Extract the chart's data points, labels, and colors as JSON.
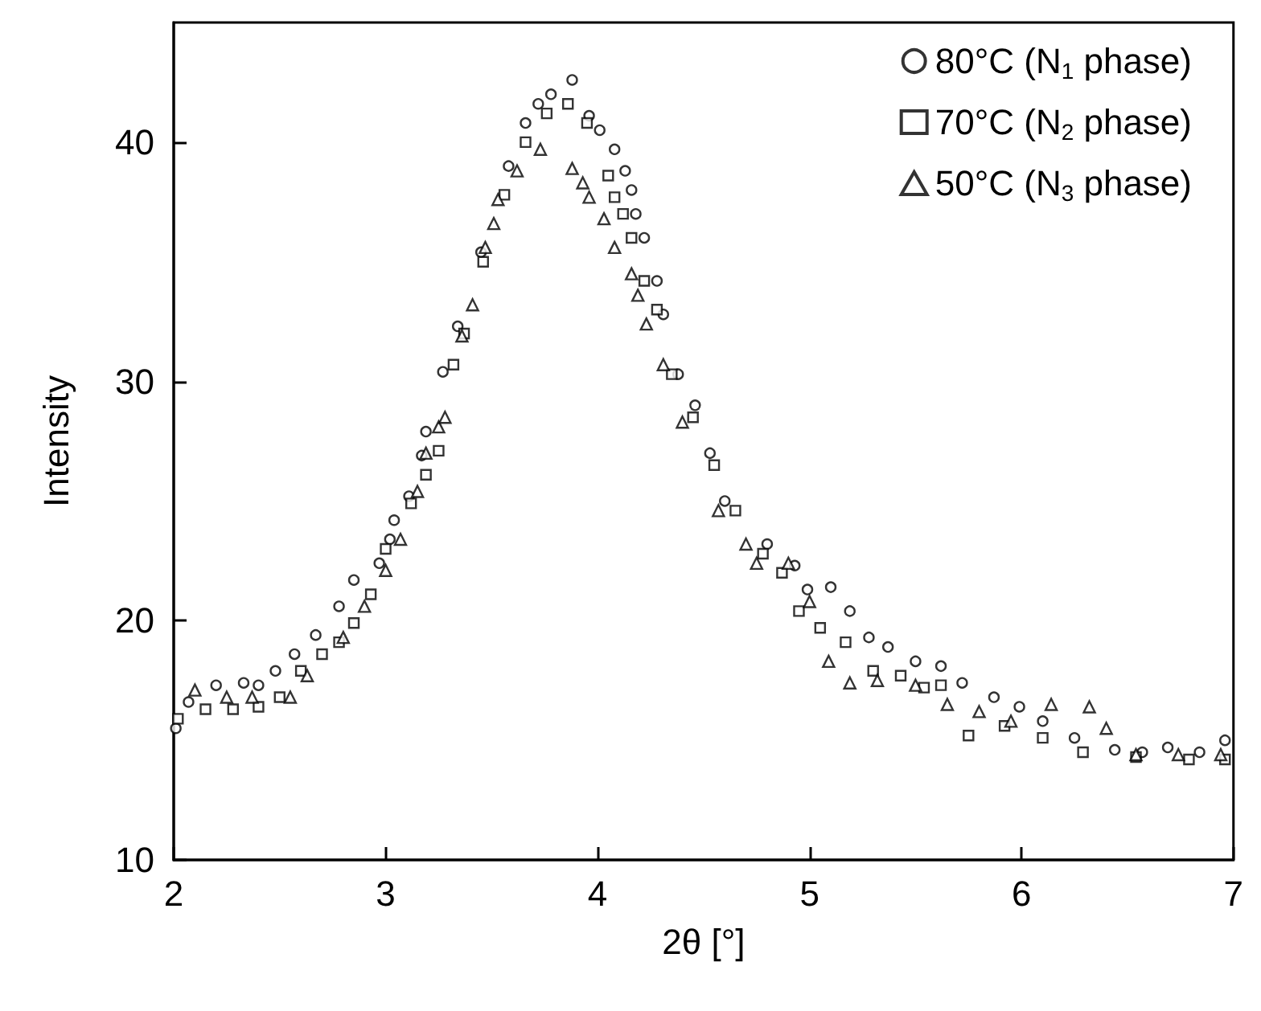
{
  "chart_data": {
    "type": "scatter",
    "xlabel": "2θ [°]",
    "ylabel": "Intensity",
    "xlim": [
      2,
      7
    ],
    "ylim": [
      10,
      45
    ],
    "xticks": [
      2,
      3,
      4,
      5,
      6,
      7
    ],
    "yticks": [
      10,
      20,
      30,
      40
    ],
    "legend": "top right",
    "series": [
      {
        "name": "80°C (N$_{1}$ phase)",
        "color": "#000000",
        "marker": "circle",
        "x": [
          2.01,
          2.07,
          2.2,
          2.33,
          2.4,
          2.48,
          2.57,
          2.67,
          2.78,
          2.85,
          2.97,
          3.02,
          3.04,
          3.11,
          3.17,
          3.19,
          3.27,
          3.34,
          3.45,
          3.58,
          3.66,
          3.72,
          3.78,
          3.88,
          3.96,
          4.01,
          4.08,
          4.13,
          4.16,
          4.18,
          4.22,
          4.28,
          4.31,
          4.38,
          4.46,
          4.53,
          4.6,
          4.8,
          4.93,
          4.99,
          5.1,
          5.19,
          5.28,
          5.37,
          5.5,
          5.62,
          5.72,
          5.87,
          5.99,
          6.1,
          6.25,
          6.44,
          6.57,
          6.69,
          6.84,
          6.96
        ],
        "values": [
          15.5,
          16.6,
          17.3,
          17.4,
          17.3,
          17.9,
          18.6,
          19.4,
          20.6,
          21.7,
          22.4,
          23.4,
          24.2,
          25.2,
          26.9,
          27.9,
          30.4,
          32.3,
          35.4,
          39,
          40.8,
          41.6,
          42,
          42.6,
          41.1,
          40.5,
          39.7,
          38.8,
          38,
          37,
          36,
          34.2,
          32.8,
          30.3,
          29,
          27,
          25,
          23.2,
          22.3,
          21.3,
          21.4,
          20.4,
          19.3,
          18.9,
          18.3,
          18.1,
          17.4,
          16.8,
          16.4,
          15.8,
          15.1,
          14.6,
          14.5,
          14.7,
          14.5,
          15
        ]
      },
      {
        "name": "70°C (N$_{2}$ phase)",
        "color": "#000000",
        "marker": "square",
        "x": [
          2.02,
          2.15,
          2.28,
          2.4,
          2.5,
          2.6,
          2.7,
          2.78,
          2.85,
          2.93,
          3.0,
          3.12,
          3.19,
          3.25,
          3.32,
          3.37,
          3.46,
          3.56,
          3.66,
          3.76,
          3.86,
          3.95,
          4.05,
          4.08,
          4.12,
          4.16,
          4.22,
          4.28,
          4.35,
          4.45,
          4.55,
          4.65,
          4.78,
          4.87,
          4.95,
          5.05,
          5.17,
          5.3,
          5.43,
          5.54,
          5.62,
          5.75,
          5.92,
          6.1,
          6.29,
          6.54,
          6.79,
          6.96
        ],
        "values": [
          15.9,
          16.3,
          16.3,
          16.4,
          16.8,
          17.9,
          18.6,
          19.1,
          19.9,
          21.1,
          23,
          24.9,
          26.1,
          27.1,
          30.7,
          32,
          35,
          37.8,
          40,
          41.2,
          41.6,
          40.8,
          38.6,
          37.7,
          37,
          36,
          34.2,
          33,
          30.3,
          28.5,
          26.5,
          24.6,
          22.8,
          22,
          20.4,
          19.7,
          19.1,
          17.9,
          17.7,
          17.2,
          17.3,
          15.2,
          15.6,
          15.1,
          14.5,
          14.3,
          14.2,
          14.2
        ]
      },
      {
        "name": "50°C (N$_{3}$ phase)",
        "color": "#000000",
        "marker": "triangle",
        "x": [
          2.1,
          2.25,
          2.37,
          2.55,
          2.63,
          2.8,
          2.9,
          3.0,
          3.07,
          3.15,
          3.19,
          3.25,
          3.28,
          3.36,
          3.41,
          3.47,
          3.51,
          3.53,
          3.62,
          3.73,
          3.88,
          3.93,
          3.96,
          4.03,
          4.08,
          4.16,
          4.19,
          4.23,
          4.31,
          4.4,
          4.57,
          4.7,
          4.75,
          4.9,
          5.0,
          5.09,
          5.19,
          5.32,
          5.5,
          5.65,
          5.8,
          5.95,
          6.14,
          6.32,
          6.4,
          6.54,
          6.74,
          6.94
        ],
        "values": [
          17.1,
          16.8,
          16.8,
          16.8,
          17.7,
          19.3,
          20.6,
          22.1,
          23.4,
          25.4,
          27,
          28.1,
          28.5,
          31.9,
          33.2,
          35.6,
          36.6,
          37.6,
          38.8,
          39.7,
          38.9,
          38.3,
          37.7,
          36.8,
          35.6,
          34.5,
          33.6,
          32.4,
          30.7,
          28.3,
          24.6,
          23.2,
          22.4,
          22.4,
          20.8,
          18.3,
          17.4,
          17.5,
          17.3,
          16.5,
          16.2,
          15.8,
          16.5,
          16.4,
          15.5,
          14.4,
          14.4,
          14.4
        ]
      }
    ]
  }
}
